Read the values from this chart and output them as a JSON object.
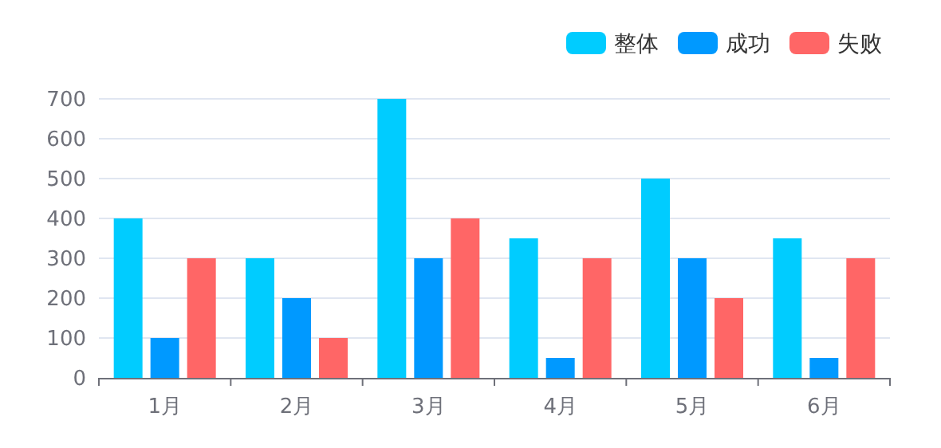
{
  "chart_data": {
    "type": "bar",
    "categories": [
      "1月",
      "2月",
      "3月",
      "4月",
      "5月",
      "6月"
    ],
    "series": [
      {
        "name": "整体",
        "color": "#00ccff",
        "values": [
          400,
          300,
          700,
          350,
          500,
          350
        ]
      },
      {
        "name": "成功",
        "color": "#0099ff",
        "values": [
          100,
          200,
          300,
          50,
          300,
          50
        ]
      },
      {
        "name": "失败",
        "color": "#ff6666",
        "values": [
          300,
          100,
          400,
          300,
          200,
          300
        ]
      }
    ],
    "ylim": [
      0,
      700
    ],
    "yticks": [
      0,
      100,
      200,
      300,
      400,
      500,
      600,
      700
    ],
    "grid": "y",
    "legend": "top right"
  }
}
